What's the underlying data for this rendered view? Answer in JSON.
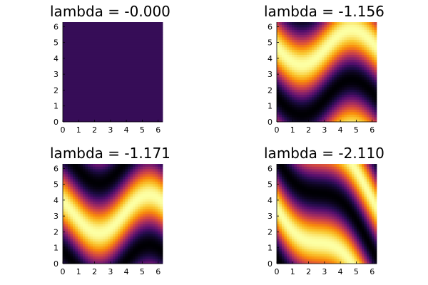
{
  "chart_data": [
    {
      "type": "heatmap",
      "title": "lambda = -0.000",
      "xlim": [
        0,
        6.283
      ],
      "ylim": [
        0,
        6.283
      ],
      "xticks": [
        0,
        1,
        2,
        3,
        4,
        5,
        6
      ],
      "yticks": [
        0,
        1,
        2,
        3,
        4,
        5,
        6
      ],
      "xtick_labels": [
        "0",
        "1",
        "2",
        "3",
        "4",
        "5",
        "6"
      ],
      "ytick_labels": [
        "0",
        "1",
        "2",
        "3",
        "4",
        "5",
        "6"
      ],
      "colormap": "inferno",
      "field": {
        "kind": "constant",
        "value": 0.18
      }
    },
    {
      "type": "heatmap",
      "title": "lambda = -1.156",
      "xlim": [
        0,
        6.283
      ],
      "ylim": [
        0,
        6.283
      ],
      "xticks": [
        0,
        1,
        2,
        3,
        4,
        5,
        6
      ],
      "yticks": [
        0,
        1,
        2,
        3,
        4,
        5,
        6
      ],
      "xtick_labels": [
        "0",
        "1",
        "2",
        "3",
        "4",
        "5",
        "6"
      ],
      "ytick_labels": [
        "0",
        "1",
        "2",
        "3",
        "4",
        "5",
        "6"
      ],
      "colormap": "inferno",
      "field": {
        "kind": "wave",
        "fx": 0,
        "fy": 1,
        "phase": -3.14,
        "skew": 0.55,
        "skew_freq": 1,
        "skew_phase": 0
      }
    },
    {
      "type": "heatmap",
      "title": "lambda = -1.171",
      "xlim": [
        0,
        6.283
      ],
      "ylim": [
        0,
        6.283
      ],
      "xticks": [
        0,
        1,
        2,
        3,
        4,
        5,
        6
      ],
      "yticks": [
        0,
        1,
        2,
        3,
        4,
        5,
        6
      ],
      "xtick_labels": [
        "0",
        "1",
        "2",
        "3",
        "4",
        "5",
        "6"
      ],
      "ytick_labels": [
        "0",
        "1",
        "2",
        "3",
        "4",
        "5",
        "6"
      ],
      "colormap": "inferno",
      "field": {
        "kind": "wave",
        "fx": 0,
        "fy": 1,
        "phase": -1.57,
        "skew": 0.6,
        "skew_freq": 1,
        "skew_phase": -0.7
      }
    },
    {
      "type": "heatmap",
      "title": "lambda = -2.110",
      "xlim": [
        0,
        6.283
      ],
      "ylim": [
        0,
        6.283
      ],
      "xticks": [
        0,
        1,
        2,
        3,
        4,
        5,
        6
      ],
      "yticks": [
        0,
        1,
        2,
        3,
        4,
        5,
        6
      ],
      "xtick_labels": [
        "0",
        "1",
        "2",
        "3",
        "4",
        "5",
        "6"
      ],
      "ytick_labels": [
        "0",
        "1",
        "2",
        "3",
        "4",
        "5",
        "6"
      ],
      "colormap": "inferno",
      "field": {
        "kind": "wave",
        "fx": 1,
        "fy": 1,
        "phase": -2.4,
        "skew": 0.45,
        "skew_freq": 1,
        "skew_phase": 0.5
      }
    }
  ]
}
